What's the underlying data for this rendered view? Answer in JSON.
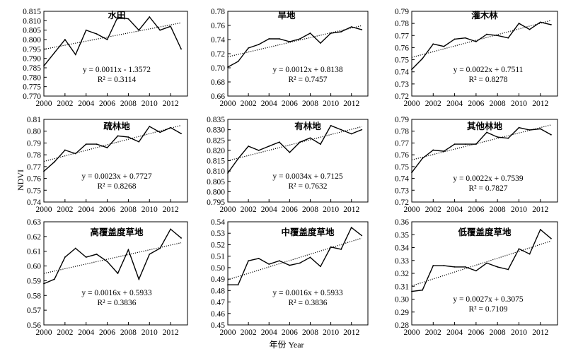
{
  "figure": {
    "xlabel": "年份  Year",
    "ylabel": "NDVI"
  },
  "chart_data": [
    {
      "type": "line",
      "title": "水田",
      "x": [
        2000,
        2001,
        2002,
        2003,
        2004,
        2005,
        2006,
        2007,
        2008,
        2009,
        2010,
        2011,
        2012,
        2013
      ],
      "values": [
        0.786,
        0.793,
        0.8,
        0.792,
        0.805,
        0.803,
        0.8,
        0.812,
        0.811,
        0.805,
        0.812,
        0.805,
        0.807,
        0.795
      ],
      "trend": {
        "slope": 0.0011,
        "intercept": -1.3572
      },
      "equation": "y = 0.0011x - 1.3572",
      "r2": "R² = 0.3114",
      "ylim": [
        0.77,
        0.815
      ],
      "yticks": [
        "0.770",
        "0.775",
        "0.780",
        "0.785",
        "0.790",
        "0.795",
        "0.800",
        "0.805",
        "0.810",
        "0.815"
      ],
      "xticks": [
        "2000",
        "2002",
        "2004",
        "2006",
        "2008",
        "2010",
        "2012"
      ]
    },
    {
      "type": "line",
      "title": "旱地",
      "x": [
        2000,
        2001,
        2002,
        2003,
        2004,
        2005,
        2006,
        2007,
        2008,
        2009,
        2010,
        2011,
        2012,
        2013
      ],
      "values": [
        0.701,
        0.709,
        0.728,
        0.733,
        0.741,
        0.741,
        0.737,
        0.741,
        0.749,
        0.735,
        0.749,
        0.751,
        0.758,
        0.754
      ],
      "trend": {
        "slope": 0.0012,
        "intercept": 0.8138
      },
      "equation": "y = 0.0012x + 0.8138",
      "r2": "R² = 0.7457",
      "ylim": [
        0.66,
        0.78
      ],
      "yticks": [
        "0.66",
        "0.68",
        "0.70",
        "0.72",
        "0.74",
        "0.76",
        "0.78"
      ],
      "xticks": [
        "2000",
        "2002",
        "2004",
        "2006",
        "2008",
        "2010",
        "2012"
      ]
    },
    {
      "type": "line",
      "title": "灌木林",
      "x": [
        2000,
        2001,
        2002,
        2003,
        2004,
        2005,
        2006,
        2007,
        2008,
        2009,
        2010,
        2011,
        2012,
        2013
      ],
      "values": [
        0.742,
        0.751,
        0.763,
        0.761,
        0.767,
        0.768,
        0.765,
        0.771,
        0.77,
        0.768,
        0.78,
        0.775,
        0.781,
        0.779
      ],
      "trend": {
        "slope": 0.0022,
        "intercept": 0.7511
      },
      "equation": "y = 0.0022x + 0.7511",
      "r2": "R² = 0.8278",
      "ylim": [
        0.72,
        0.79
      ],
      "yticks": [
        "0.72",
        "0.73",
        "0.74",
        "0.75",
        "0.76",
        "0.77",
        "0.78",
        "0.79"
      ],
      "xticks": [
        "2000",
        "2002",
        "2004",
        "2006",
        "2008",
        "2010",
        "2012"
      ]
    },
    {
      "type": "line",
      "title": "疏林地",
      "x": [
        2000,
        2001,
        2002,
        2003,
        2004,
        2005,
        2006,
        2007,
        2008,
        2009,
        2010,
        2011,
        2012,
        2013
      ],
      "values": [
        0.766,
        0.774,
        0.784,
        0.781,
        0.789,
        0.789,
        0.786,
        0.796,
        0.795,
        0.791,
        0.804,
        0.799,
        0.803,
        0.798
      ],
      "trend": {
        "slope": 0.0023,
        "intercept": 0.7727
      },
      "equation": "y = 0.0023x + 0.7727",
      "r2": "R² = 0.8268",
      "ylim": [
        0.74,
        0.81
      ],
      "yticks": [
        "0.74",
        "0.75",
        "0.76",
        "0.77",
        "0.78",
        "0.79",
        "0.80",
        "0.81"
      ],
      "xticks": [
        "2000",
        "2002",
        "2004",
        "2006",
        "2008",
        "2010",
        "2012"
      ]
    },
    {
      "type": "line",
      "title": "有林地",
      "x": [
        2000,
        2001,
        2002,
        2003,
        2004,
        2005,
        2006,
        2007,
        2008,
        2009,
        2010,
        2011,
        2012,
        2013
      ],
      "values": [
        0.809,
        0.816,
        0.822,
        0.82,
        0.822,
        0.824,
        0.819,
        0.824,
        0.826,
        0.823,
        0.832,
        0.83,
        0.828,
        0.83
      ],
      "trend": {
        "slope": 0.0034,
        "intercept": 0.7125
      },
      "equation": "y = 0.0034x + 0.7125",
      "r2": "R² = 0.7632",
      "ylim": [
        0.795,
        0.835
      ],
      "yticks": [
        "0.795",
        "0.800",
        "0.805",
        "0.810",
        "0.815",
        "0.820",
        "0.825",
        "0.830",
        "0.835"
      ],
      "xticks": [
        "2000",
        "2002",
        "2004",
        "2006",
        "2008",
        "2010",
        "2012"
      ]
    },
    {
      "type": "line",
      "title": "其他林地",
      "x": [
        2000,
        2001,
        2002,
        2003,
        2004,
        2005,
        2006,
        2007,
        2008,
        2009,
        2010,
        2011,
        2012,
        2013
      ],
      "values": [
        0.745,
        0.757,
        0.764,
        0.763,
        0.769,
        0.769,
        0.769,
        0.779,
        0.775,
        0.774,
        0.783,
        0.781,
        0.782,
        0.777
      ],
      "trend": {
        "slope": 0.0022,
        "intercept": 0.7539
      },
      "equation": "y = 0.0022x + 0.7539",
      "r2": "R² = 0.7827",
      "ylim": [
        0.72,
        0.79
      ],
      "yticks": [
        "0.72",
        "0.73",
        "0.74",
        "0.75",
        "0.76",
        "0.77",
        "0.78",
        "0.79"
      ],
      "xticks": [
        "2000",
        "2002",
        "2004",
        "2006",
        "2008",
        "2010",
        "2012"
      ]
    },
    {
      "type": "line",
      "title": "高覆盖度草地",
      "x": [
        2000,
        2001,
        2002,
        2003,
        2004,
        2005,
        2006,
        2007,
        2008,
        2009,
        2010,
        2011,
        2012,
        2013
      ],
      "values": [
        0.588,
        0.591,
        0.606,
        0.612,
        0.606,
        0.608,
        0.603,
        0.595,
        0.611,
        0.591,
        0.608,
        0.612,
        0.625,
        0.619
      ],
      "trend": {
        "slope": 0.0016,
        "intercept": 0.5933
      },
      "equation": "y = 0.0016x + 0.5933",
      "r2": "R² = 0.3836",
      "ylim": [
        0.56,
        0.63
      ],
      "yticks": [
        "0.56",
        "0.57",
        "0.58",
        "0.59",
        "0.60",
        "0.61",
        "0.62",
        "0.63"
      ],
      "xticks": [
        "2000",
        "2002",
        "2004",
        "2006",
        "2008",
        "2010",
        "2012"
      ]
    },
    {
      "type": "line",
      "title": "中覆盖度草地",
      "x": [
        2000,
        2001,
        2002,
        2003,
        2004,
        2005,
        2006,
        2007,
        2008,
        2009,
        2010,
        2011,
        2012,
        2013
      ],
      "values": [
        0.485,
        0.485,
        0.506,
        0.508,
        0.503,
        0.506,
        0.502,
        0.504,
        0.509,
        0.501,
        0.518,
        0.516,
        0.535,
        0.528
      ],
      "trend": {
        "slope": 0.0016,
        "intercept": 0.5933
      },
      "equation": "y = 0.0016x + 0.5933",
      "r2": "R² = 0.3836",
      "ylim": [
        0.45,
        0.54
      ],
      "yticks": [
        "0.45",
        "0.46",
        "0.47",
        "0.48",
        "0.49",
        "0.50",
        "0.51",
        "0.52",
        "0.53",
        "0.54"
      ],
      "xticks": [
        "2000",
        "2002",
        "2004",
        "2006",
        "2008",
        "2010",
        "2012"
      ]
    },
    {
      "type": "line",
      "title": "低覆盖度草地",
      "x": [
        2000,
        2001,
        2002,
        2003,
        2004,
        2005,
        2006,
        2007,
        2008,
        2009,
        2010,
        2011,
        2012,
        2013
      ],
      "values": [
        0.306,
        0.307,
        0.326,
        0.326,
        0.325,
        0.325,
        0.322,
        0.328,
        0.325,
        0.323,
        0.339,
        0.335,
        0.354,
        0.347
      ],
      "trend": {
        "slope": 0.0027,
        "intercept": 0.3075
      },
      "equation": "y = 0.0027x + 0.3075",
      "r2": "R² = 0.7109",
      "ylim": [
        0.28,
        0.36
      ],
      "yticks": [
        "0.28",
        "0.29",
        "0.30",
        "0.31",
        "0.32",
        "0.33",
        "0.34",
        "0.35",
        "0.36"
      ],
      "xticks": [
        "2000",
        "2002",
        "2004",
        "2006",
        "2008",
        "2010",
        "2012"
      ]
    }
  ]
}
